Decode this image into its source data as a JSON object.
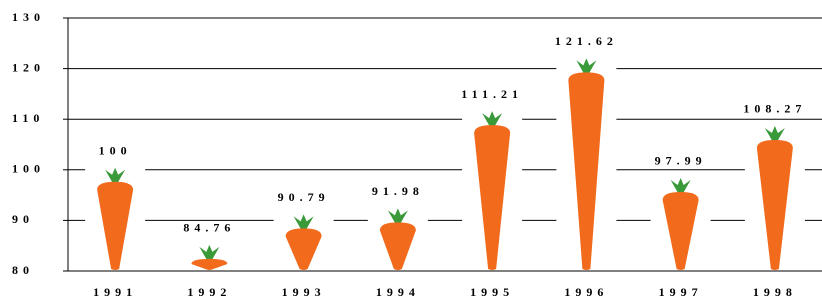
{
  "chart_data": {
    "type": "pictograph",
    "categories": [
      "1991",
      "1992",
      "1993",
      "1994",
      "1995",
      "1996",
      "1997",
      "1998"
    ],
    "values": [
      100,
      84.76,
      90.79,
      91.98,
      111.21,
      121.62,
      97.99,
      108.27
    ],
    "color": "#f26a1b",
    "ylim": [
      80,
      130
    ],
    "yticks": [
      80,
      90,
      100,
      110,
      120,
      130
    ],
    "grid": true
  }
}
